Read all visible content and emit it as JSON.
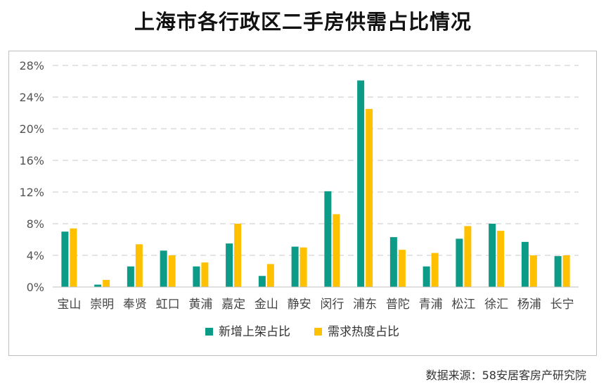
{
  "title": "上海市各行政区二手房供需占比情况",
  "source": "数据来源：58安居客房产研究院",
  "chart_data": {
    "type": "bar",
    "categories": [
      "宝山",
      "崇明",
      "奉贤",
      "虹口",
      "黄浦",
      "嘉定",
      "金山",
      "静安",
      "闵行",
      "浦东",
      "普陀",
      "青浦",
      "松江",
      "徐汇",
      "杨浦",
      "长宁"
    ],
    "series": [
      {
        "name": "新增上架占比",
        "color": "#0b9b86",
        "values": [
          7.0,
          0.3,
          2.6,
          4.6,
          2.6,
          5.5,
          1.4,
          5.1,
          12.1,
          26.1,
          6.3,
          2.6,
          6.1,
          8.0,
          5.7,
          3.9
        ]
      },
      {
        "name": "需求热度占比",
        "color": "#ffc000",
        "values": [
          7.4,
          0.9,
          5.4,
          4.0,
          3.1,
          8.0,
          2.9,
          5.0,
          9.2,
          22.5,
          4.7,
          4.3,
          7.7,
          7.1,
          4.0,
          4.0
        ]
      }
    ],
    "ylim": [
      0,
      28
    ],
    "yticks": [
      "0%",
      "4%",
      "8%",
      "12%",
      "16%",
      "20%",
      "24%",
      "28%"
    ],
    "ytick_values": [
      0,
      4,
      8,
      12,
      16,
      20,
      24,
      28
    ],
    "grid": true,
    "legend_position": "bottom"
  }
}
